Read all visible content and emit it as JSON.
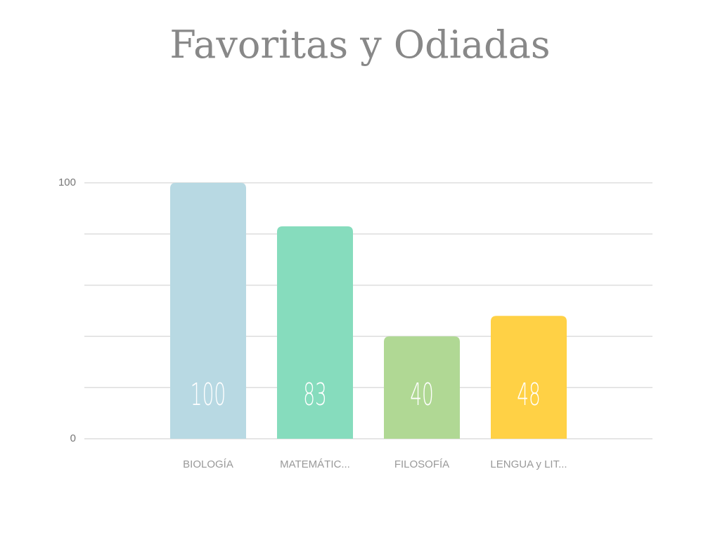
{
  "chart_data": {
    "type": "bar",
    "title": "Favoritas y Odiadas",
    "categories": [
      "BIOLOGÍA",
      "MATEMÁTIC...",
      "FILOSOFÍA",
      "LENGUA y LIT..."
    ],
    "values": [
      100,
      83,
      40,
      48
    ],
    "colors": [
      "#b8d9e3",
      "#86dcbd",
      "#b0d894",
      "#ffd145"
    ],
    "ylim": [
      0,
      100
    ],
    "yticks": [
      0,
      100
    ],
    "gridlines": [
      0,
      20,
      40,
      60,
      80,
      100
    ],
    "grid": true
  }
}
